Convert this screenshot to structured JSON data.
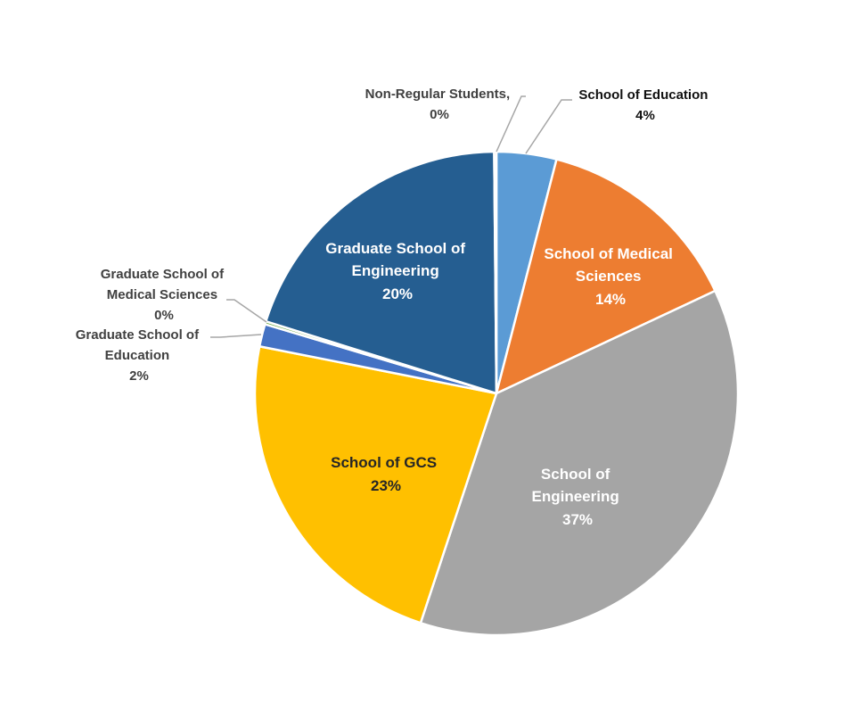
{
  "chart_data": {
    "type": "pie",
    "title": "",
    "start_angle_deg": 0,
    "direction": "clockwise",
    "slices": [
      {
        "name": "School of Education",
        "value": 4,
        "label_pct": "4%",
        "color": "#5B9BD5"
      },
      {
        "name": "School of Medical Sciences",
        "value": 14,
        "label_pct": "14%",
        "color": "#ED7D31"
      },
      {
        "name": "School of Engineering",
        "value": 37,
        "label_pct": "37%",
        "color": "#A5A5A5"
      },
      {
        "name": "School of GCS",
        "value": 23,
        "label_pct": "23%",
        "color": "#FFC000"
      },
      {
        "name": "Graduate School of Education",
        "value": 1.5,
        "label_pct": "2%",
        "color": "#4472C4"
      },
      {
        "name": "Graduate School of Medical Sciences",
        "value": 0.2,
        "label_pct": "0%",
        "color": "#70AD47"
      },
      {
        "name": "Graduate School of Engineering",
        "value": 20,
        "label_pct": "20%",
        "color": "#255E91"
      },
      {
        "name": "Non-Regular Students",
        "value": 0.15,
        "label_pct": "0%",
        "color": "#9E480E"
      }
    ],
    "labels": {
      "school_of_education": [
        "School of Education",
        "4%"
      ],
      "school_of_medical_sciences": [
        "School of Medical",
        "Sciences",
        "14%"
      ],
      "school_of_engineering": [
        "School of",
        "Engineering",
        "37%"
      ],
      "school_of_gcs": [
        "School of GCS",
        "23%"
      ],
      "graduate_school_of_education": [
        "Graduate School of",
        "Education",
        "2%"
      ],
      "graduate_school_of_medical_sciences": [
        "Graduate School of",
        "Medical Sciences",
        "0%"
      ],
      "graduate_school_of_engineering": [
        "Graduate School of",
        "Engineering",
        "20%"
      ],
      "non_regular_students": [
        "Non-Regular Students,",
        "0%"
      ]
    }
  }
}
